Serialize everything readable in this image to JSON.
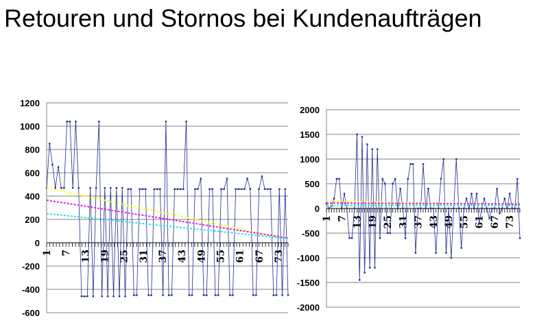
{
  "title": "Retouren und Stornos bei Kundenaufträgen",
  "colors": {
    "series": "#1f2a8f",
    "trend_yellow": "#ffff33",
    "trend_magenta": "#e020e0",
    "trend_cyan": "#33dddd",
    "grid": "#808080"
  },
  "chart_data": [
    {
      "type": "line",
      "ylim": [
        -600,
        1200
      ],
      "yticks": [
        -600,
        -400,
        -200,
        0,
        200,
        400,
        600,
        800,
        1000,
        1200
      ],
      "xlim": [
        1,
        76
      ],
      "xtick_labels": [
        1,
        7,
        13,
        19,
        25,
        31,
        37,
        43,
        49,
        55,
        61,
        67,
        73
      ],
      "grid": true,
      "legend": "none",
      "series": [
        {
          "values": [
            470,
            850,
            670,
            470,
            650,
            470,
            470,
            1040,
            1040,
            470,
            1040,
            470,
            -460,
            -460,
            -460,
            470,
            -460,
            470,
            1040,
            -460,
            470,
            -460,
            470,
            -460,
            470,
            -460,
            470,
            -460,
            460,
            460,
            -450,
            -450,
            460,
            460,
            460,
            -450,
            -450,
            460,
            460,
            460,
            -450,
            1040,
            -450,
            -450,
            460,
            460,
            460,
            460,
            1040,
            -450,
            -450,
            460,
            460,
            550,
            -450,
            -450,
            460,
            460,
            -450,
            -450,
            460,
            460,
            550,
            -450,
            -450,
            460,
            460,
            460,
            460,
            550,
            460,
            -450,
            -450,
            460,
            570,
            460,
            460,
            460,
            -450,
            -450,
            460,
            -450,
            460,
            -450
          ]
        },
        {
          "values": [
            470,
            30
          ],
          "x": [
            1,
            76
          ]
        },
        {
          "values": [
            365,
            40
          ],
          "x": [
            1,
            76
          ]
        },
        {
          "values": [
            250,
            35
          ],
          "x": [
            1,
            76
          ]
        }
      ]
    },
    {
      "type": "line",
      "ylim": [
        -2000,
        2000
      ],
      "yticks": [
        -2000,
        -1500,
        -1000,
        -500,
        0,
        500,
        1000,
        1500,
        2000
      ],
      "xlim": [
        1,
        77
      ],
      "xtick_labels": [
        1,
        7,
        13,
        19,
        25,
        31,
        37,
        43,
        49,
        55,
        61,
        67,
        73
      ],
      "grid": true,
      "legend": "none",
      "series": [
        {
          "values": [
            100,
            0,
            50,
            200,
            600,
            600,
            0,
            300,
            0,
            -600,
            -600,
            0,
            1500,
            -1450,
            1450,
            -1300,
            1300,
            -1200,
            1200,
            -1200,
            1200,
            -600,
            600,
            500,
            -500,
            -500,
            500,
            600,
            0,
            400,
            0,
            -600,
            600,
            900,
            900,
            -900,
            0,
            0,
            900,
            0,
            400,
            0,
            0,
            -900,
            0,
            600,
            1000,
            -900,
            0,
            -1000,
            0,
            1000,
            0,
            -800,
            0,
            200,
            0,
            300,
            0,
            300,
            -300,
            0,
            200,
            0,
            -200,
            0,
            0,
            400,
            -100,
            0,
            200,
            0,
            300,
            0,
            0,
            600,
            -600
          ]
        },
        {
          "values": [
            150,
            80
          ],
          "x": [
            1,
            77
          ]
        },
        {
          "values": [
            110,
            90
          ],
          "x": [
            1,
            77
          ]
        },
        {
          "values": [
            60,
            60
          ],
          "x": [
            1,
            77
          ]
        }
      ]
    }
  ]
}
